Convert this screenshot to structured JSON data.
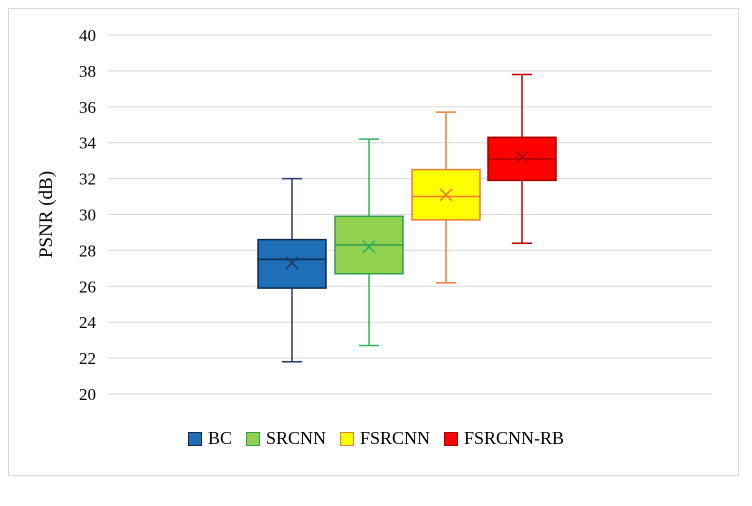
{
  "chart_data": {
    "type": "box",
    "title": "",
    "xlabel": "",
    "ylabel": "PSNR (dB)",
    "ylim": [
      20,
      40
    ],
    "yticks": [
      "20",
      "22",
      "24",
      "26",
      "28",
      "30",
      "32",
      "34",
      "36",
      "38",
      "40"
    ],
    "grid": true,
    "legend_position": "bottom",
    "series": [
      {
        "name": "BC",
        "color": "#1F6FB8",
        "edge": "#0D2A4A",
        "whisker": "#1F3A6B",
        "mean_color": "#1F3A6B",
        "min": 21.8,
        "q1": 25.9,
        "median": 27.5,
        "q3": 28.6,
        "max": 32.0,
        "mean": 27.3
      },
      {
        "name": "SRCNN",
        "color": "#92D050",
        "edge": "#2E9E4F",
        "whisker": "#2EB25A",
        "mean_color": "#2EB25A",
        "min": 22.7,
        "q1": 26.7,
        "median": 28.3,
        "q3": 29.9,
        "max": 34.2,
        "mean": 28.2
      },
      {
        "name": "FSRCNN",
        "color": "#FFFF00",
        "edge": "#ED7D31",
        "whisker": "#ED7D31",
        "mean_color": "#ED7D31",
        "min": 26.2,
        "q1": 29.7,
        "median": 31.0,
        "q3": 32.5,
        "max": 35.7,
        "mean": 31.1
      },
      {
        "name": "FSRCNN-RB",
        "color": "#FF0000",
        "edge": "#A50000",
        "whisker": "#C00000",
        "mean_color": "#A50000",
        "min": 28.4,
        "q1": 31.9,
        "median": 33.1,
        "q3": 34.3,
        "max": 37.8,
        "mean": 33.2
      }
    ]
  }
}
